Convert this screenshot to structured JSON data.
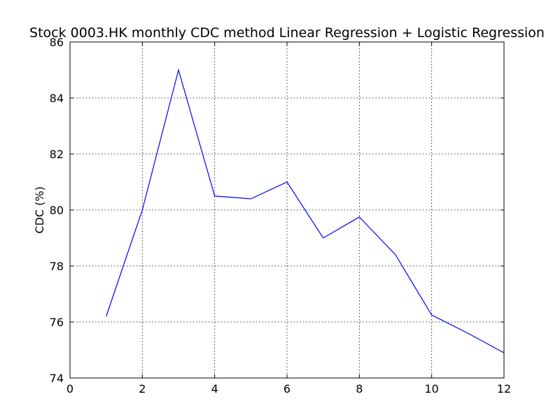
{
  "chart_data": {
    "type": "line",
    "title": "Stock 0003.HK monthly CDC method Linear Regression + Logistic Regression",
    "xlabel": "",
    "ylabel": "CDC (%)",
    "xlim": [
      0,
      12
    ],
    "ylim": [
      74,
      86
    ],
    "x_ticks": [
      "0",
      "2",
      "4",
      "6",
      "8",
      "10",
      "12"
    ],
    "y_ticks": [
      "74",
      "76",
      "78",
      "80",
      "82",
      "84",
      "86"
    ],
    "grid": true,
    "legend": "none",
    "series": [
      {
        "color": "#0000ff",
        "x": [
          1,
          2,
          3,
          4,
          5,
          6,
          7,
          8,
          9,
          10,
          11,
          12
        ],
        "y": [
          76.2,
          80.0,
          85.0,
          80.5,
          80.4,
          81.0,
          79.0,
          79.75,
          78.4,
          76.25,
          75.6,
          74.9
        ]
      }
    ]
  }
}
